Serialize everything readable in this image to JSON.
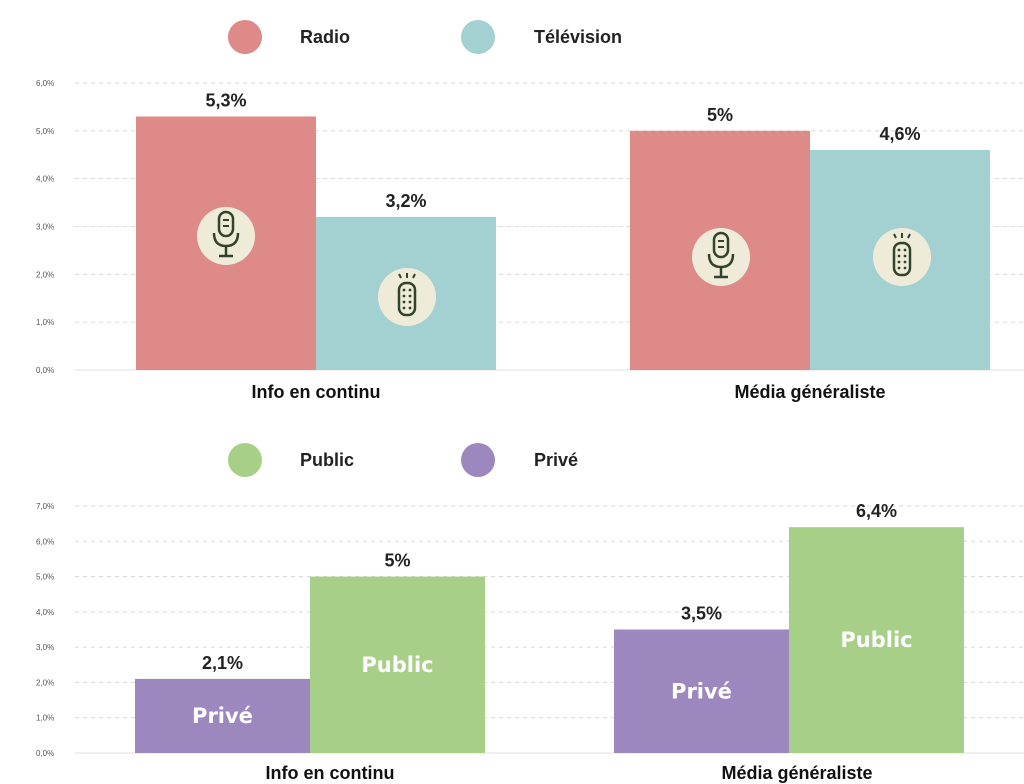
{
  "colors": {
    "radio": "#dd8a88",
    "television": "#a3d1d1",
    "public": "#a8cf87",
    "prive": "#9d87bf",
    "icon_bg": "#eeecd9",
    "icon_stroke": "#33422d"
  },
  "chart_data": [
    {
      "type": "bar",
      "legend": [
        {
          "name": "Radio",
          "color_key": "radio"
        },
        {
          "name": "Télévision",
          "color_key": "television"
        }
      ],
      "categories": [
        "Info en continu",
        "Média généraliste"
      ],
      "series": [
        {
          "name": "Radio",
          "values": [
            5.3,
            5.0
          ],
          "labels": [
            "5,3%",
            "5%"
          ],
          "icon": "microphone-icon"
        },
        {
          "name": "Télévision",
          "values": [
            3.2,
            4.6
          ],
          "labels": [
            "3,2%",
            "4,6%"
          ],
          "icon": "remote-control-icon"
        }
      ],
      "ylim": [
        0,
        6
      ],
      "yticks": [
        "0,0%",
        "1,0%",
        "2,0%",
        "3,0%",
        "4,0%",
        "5,0%",
        "6,0%"
      ],
      "grid": true,
      "legend_position": "top-left"
    },
    {
      "type": "bar",
      "legend": [
        {
          "name": "Public",
          "color_key": "public"
        },
        {
          "name": "Privé",
          "color_key": "prive"
        }
      ],
      "categories": [
        "Info en continu",
        "Média généraliste"
      ],
      "series": [
        {
          "name": "Privé",
          "values": [
            2.1,
            3.5
          ],
          "labels": [
            "2,1%",
            "3,5%"
          ],
          "inbar": "Privé"
        },
        {
          "name": "Public",
          "values": [
            5.0,
            6.4
          ],
          "labels": [
            "5%",
            "6,4%"
          ],
          "inbar": "Public"
        }
      ],
      "ylim": [
        0,
        7
      ],
      "yticks": [
        "0,0%",
        "1,0%",
        "2,0%",
        "3,0%",
        "4,0%",
        "5,0%",
        "6,0%",
        "7,0%"
      ],
      "grid": true,
      "legend_position": "top-left"
    }
  ]
}
